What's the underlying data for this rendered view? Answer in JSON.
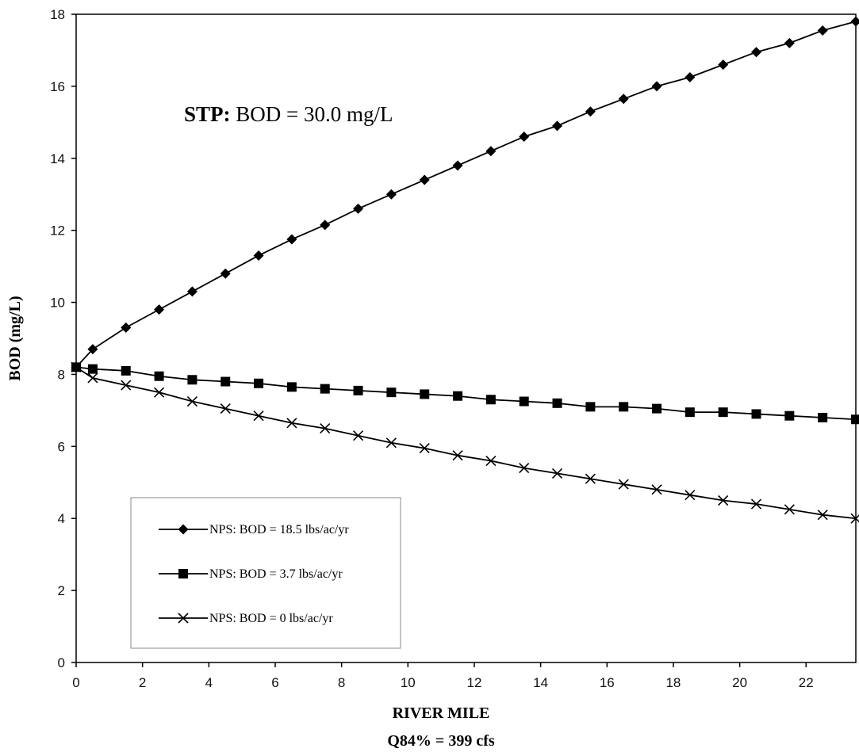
{
  "chart_data": {
    "type": "line",
    "xlabel": "RIVER MILE",
    "xlabel_sub": "Q84% = 399 cfs",
    "ylabel": "BOD (mg/L)",
    "xlim": [
      0,
      23.5
    ],
    "ylim": [
      0,
      18
    ],
    "xticks": [
      0,
      2,
      4,
      6,
      8,
      10,
      12,
      14,
      16,
      18,
      20,
      22
    ],
    "yticks": [
      0,
      2,
      4,
      6,
      8,
      10,
      12,
      14,
      16,
      18
    ],
    "grid": false,
    "legend_position": "lower-left",
    "annotation": {
      "bold": "STP:",
      "rest": " BOD = 30.0 mg/L"
    },
    "x": [
      0,
      0.5,
      1.5,
      2.5,
      3.5,
      4.5,
      5.5,
      6.5,
      7.5,
      8.5,
      9.5,
      10.5,
      11.5,
      12.5,
      13.5,
      14.5,
      15.5,
      16.5,
      17.5,
      18.5,
      19.5,
      20.5,
      21.5,
      22.5,
      23.5
    ],
    "series": [
      {
        "name": "NPS: BOD = 18.5 lbs/ac/yr",
        "marker": "diamond",
        "values": [
          8.2,
          8.7,
          9.3,
          9.8,
          10.3,
          10.8,
          11.3,
          11.75,
          12.15,
          12.6,
          13.0,
          13.4,
          13.8,
          14.2,
          14.6,
          14.9,
          15.3,
          15.65,
          16.0,
          16.25,
          16.6,
          16.95,
          17.2,
          17.55,
          17.8
        ]
      },
      {
        "name": "NPS: BOD = 3.7 lbs/ac/yr",
        "marker": "square",
        "values": [
          8.2,
          8.15,
          8.1,
          7.95,
          7.85,
          7.8,
          7.75,
          7.65,
          7.6,
          7.55,
          7.5,
          7.45,
          7.4,
          7.3,
          7.25,
          7.2,
          7.1,
          7.1,
          7.05,
          6.95,
          6.95,
          6.9,
          6.85,
          6.8,
          6.75
        ]
      },
      {
        "name": "NPS: BOD = 0 lbs/ac/yr",
        "marker": "x",
        "values": [
          8.2,
          7.9,
          7.7,
          7.5,
          7.25,
          7.05,
          6.85,
          6.65,
          6.5,
          6.3,
          6.1,
          5.95,
          5.75,
          5.6,
          5.4,
          5.25,
          5.1,
          4.95,
          4.8,
          4.65,
          4.5,
          4.4,
          4.25,
          4.1,
          4.0
        ]
      }
    ]
  }
}
